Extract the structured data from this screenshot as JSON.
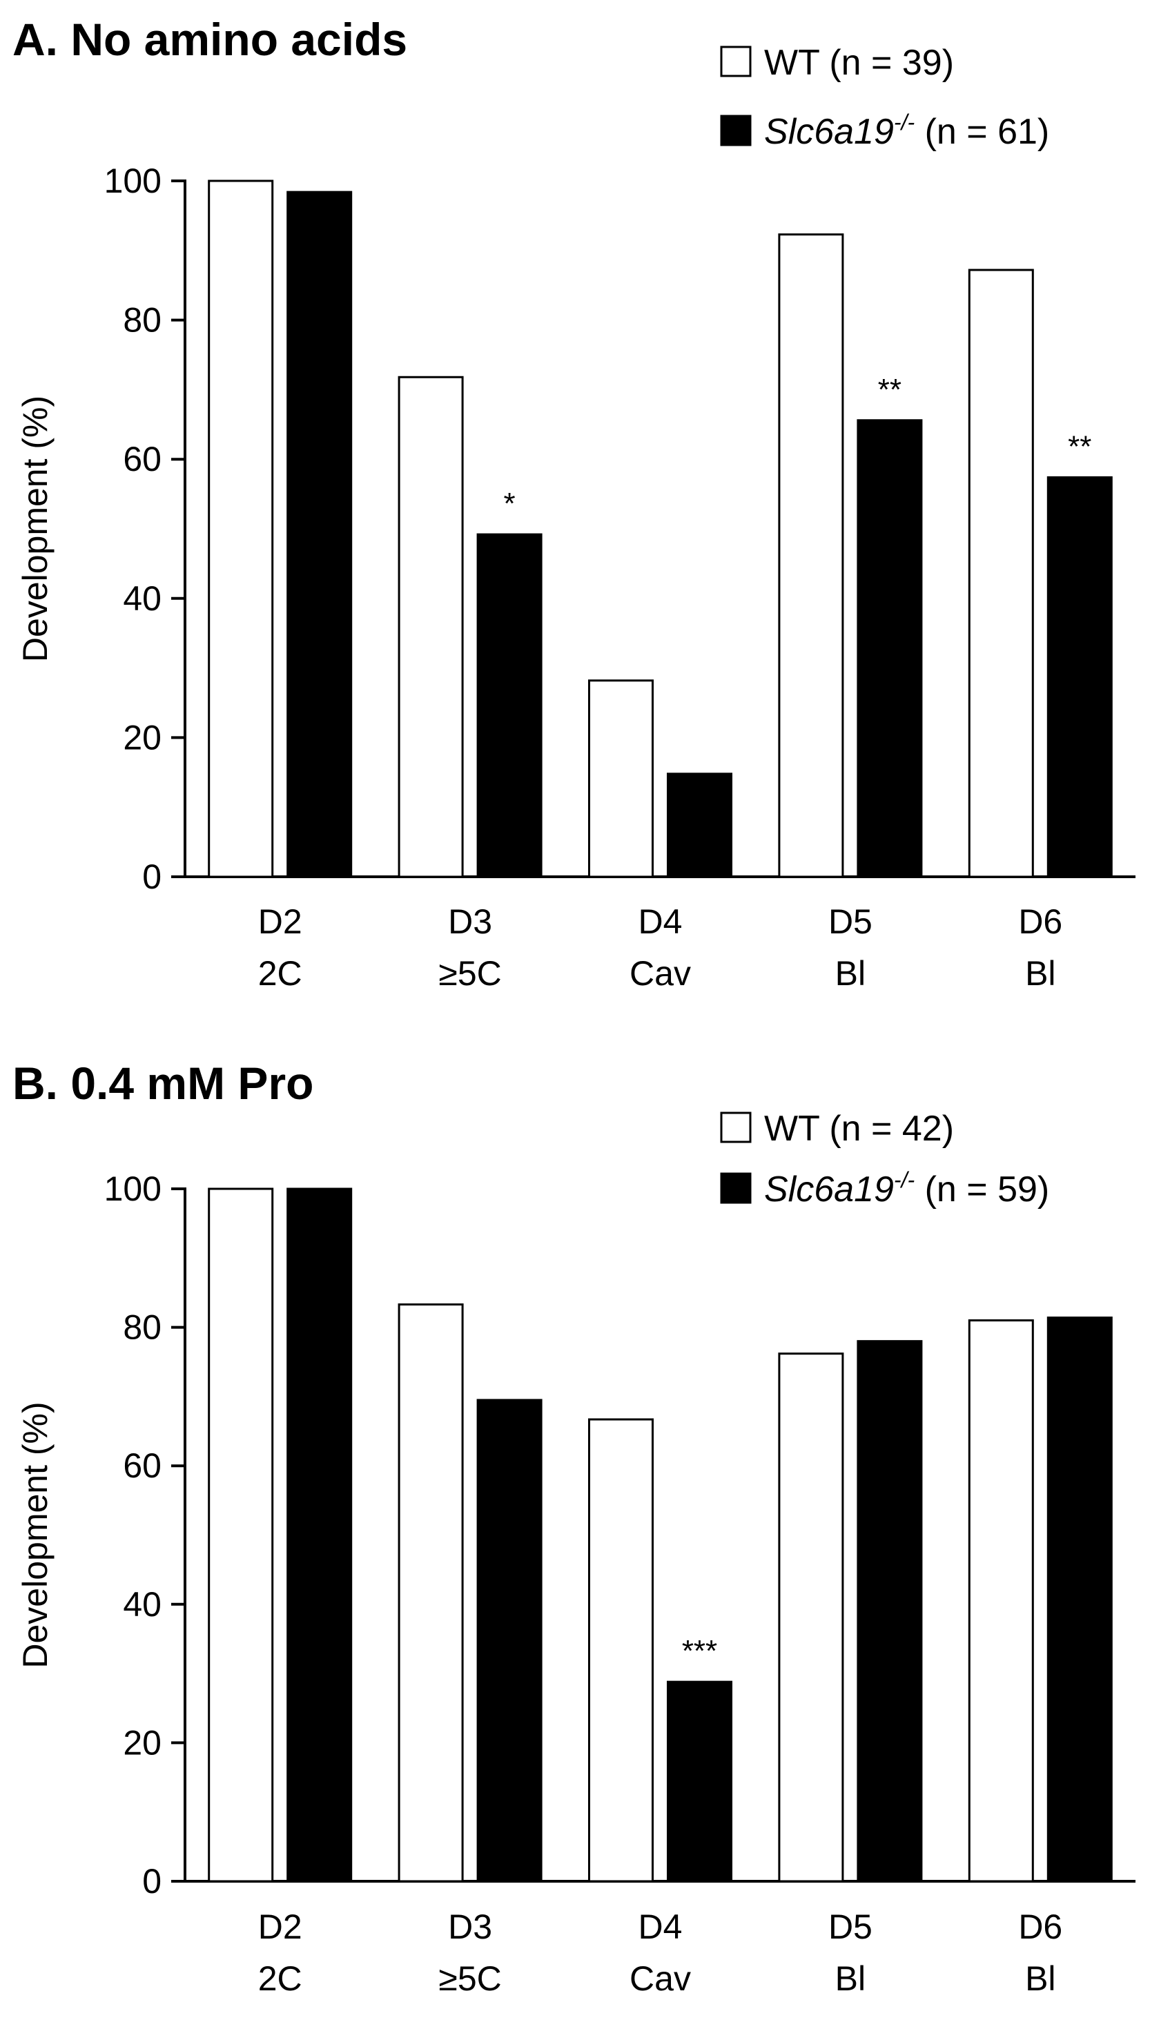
{
  "chart_data": [
    {
      "type": "bar",
      "title": "A. No amino acids",
      "ylabel": "Development (%)",
      "xlabel": "",
      "ylim": [
        0,
        100
      ],
      "yticks": [
        0,
        20,
        40,
        60,
        80,
        100
      ],
      "categories": [
        {
          "line1": "D2",
          "line2": "2C"
        },
        {
          "line1": "D3",
          "line2": "≥5C"
        },
        {
          "line1": "D4",
          "line2": "Cav"
        },
        {
          "line1": "D5",
          "line2": "Bl"
        },
        {
          "line1": "D6",
          "line2": "Bl"
        }
      ],
      "series": [
        {
          "name": "WT",
          "n_label": " (n = 39)",
          "color": "#ffffff",
          "values": [
            100,
            71.8,
            28.2,
            92.3,
            87.2
          ]
        },
        {
          "name": "Slc6a19",
          "superscript": "-/-",
          "n_label": " (n = 61)",
          "color": "#000000",
          "values": [
            98.4,
            49.2,
            14.8,
            65.6,
            57.4
          ]
        }
      ],
      "annotations": [
        "",
        "*",
        "",
        "**",
        "**"
      ]
    },
    {
      "type": "bar",
      "title": "B. 0.4 mM Pro",
      "ylabel": "Development (%)",
      "xlabel": "",
      "ylim": [
        0,
        100
      ],
      "yticks": [
        0,
        20,
        40,
        60,
        80,
        100
      ],
      "categories": [
        {
          "line1": "D2",
          "line2": "2C"
        },
        {
          "line1": "D3",
          "line2": "≥5C"
        },
        {
          "line1": "D4",
          "line2": "Cav"
        },
        {
          "line1": "D5",
          "line2": "Bl"
        },
        {
          "line1": "D6",
          "line2": "Bl"
        }
      ],
      "series": [
        {
          "name": "WT",
          "n_label": " (n = 42)",
          "color": "#ffffff",
          "values": [
            100,
            83.3,
            66.7,
            76.2,
            81.0
          ]
        },
        {
          "name": "Slc6a19",
          "superscript": "-/-",
          "n_label": " (n = 59)",
          "color": "#000000",
          "values": [
            100,
            69.5,
            28.8,
            78.0,
            81.4
          ]
        }
      ],
      "annotations": [
        "",
        "",
        "***",
        "",
        ""
      ]
    }
  ]
}
